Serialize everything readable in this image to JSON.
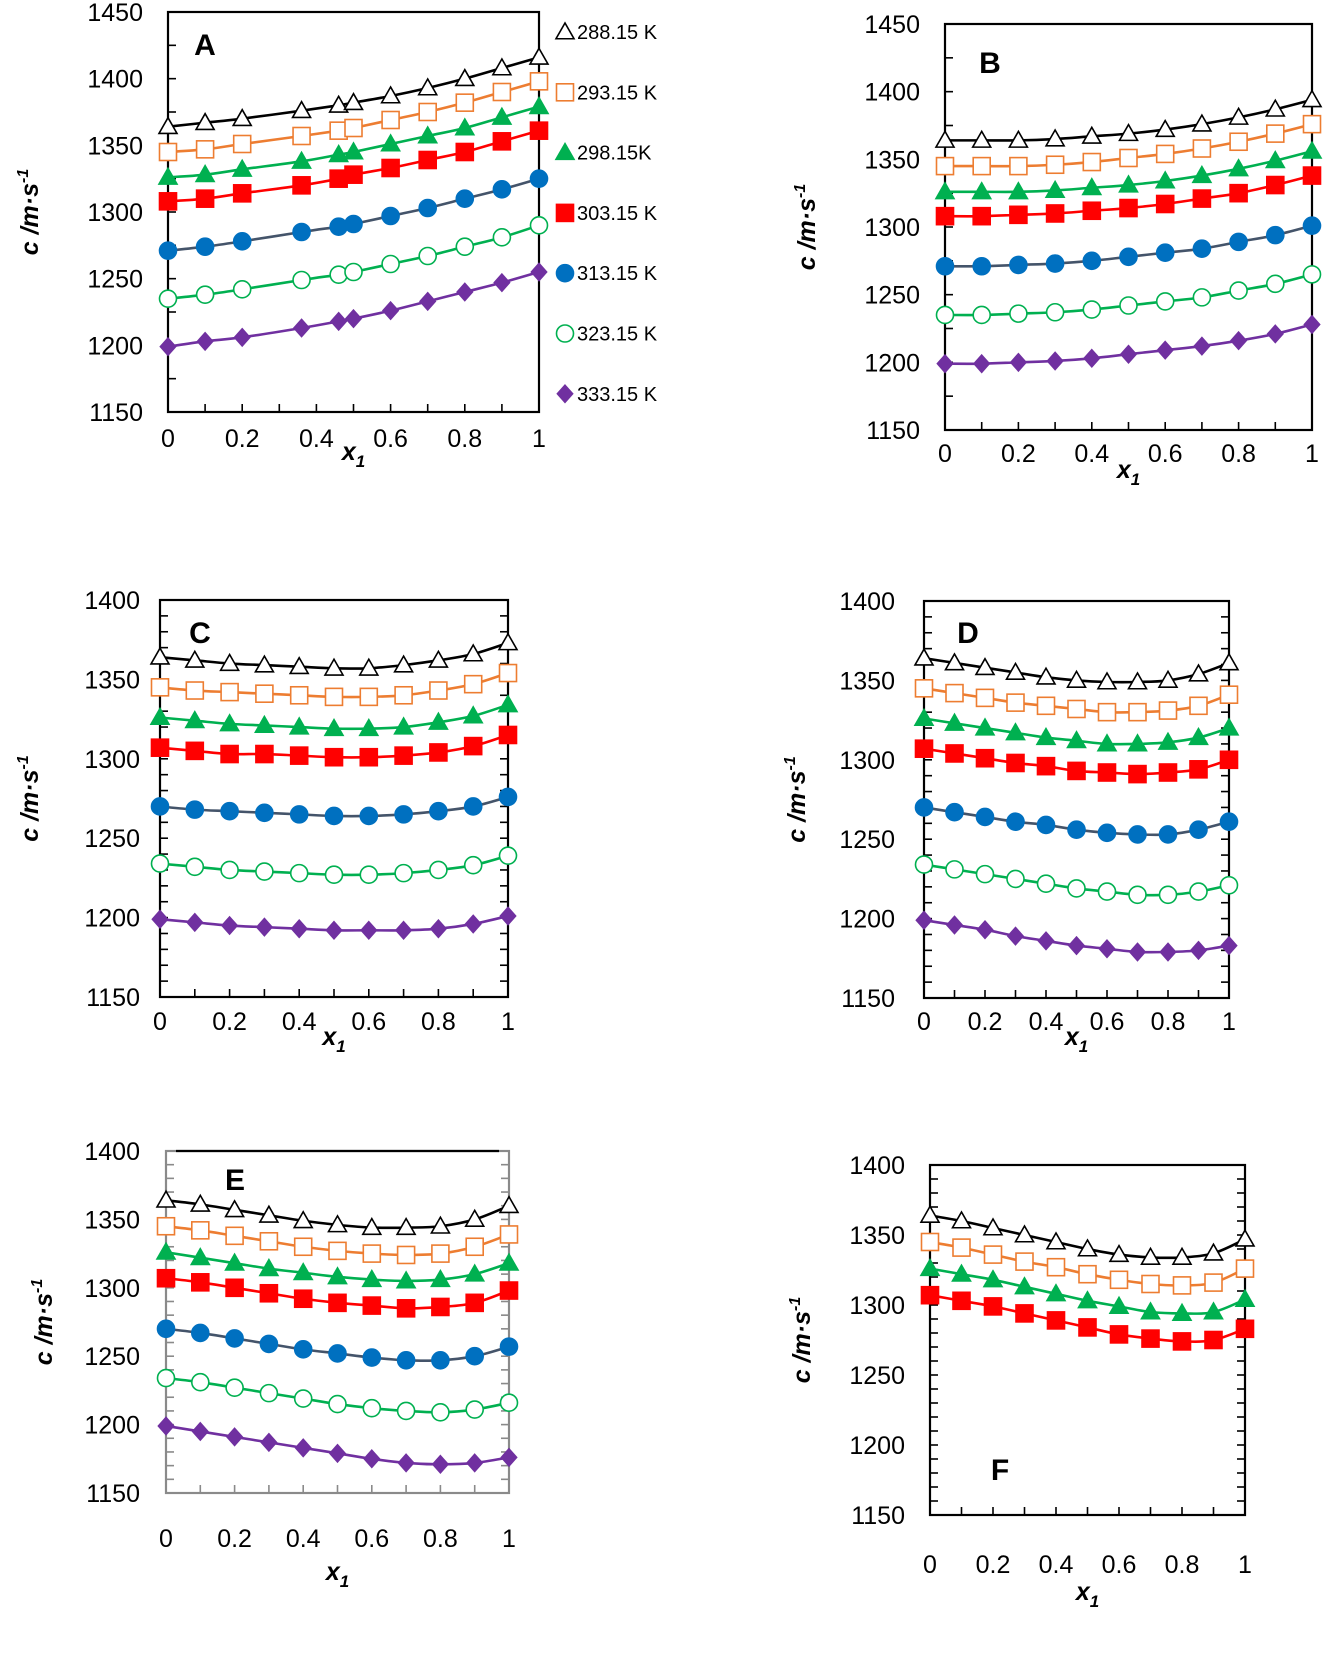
{
  "chart_data": {
    "type": "line",
    "legend": {
      "placement": "right-of-panel-A",
      "entries": [
        {
          "key": "T288",
          "label": "288.15 K",
          "marker": "triangle-open",
          "color": "#000000",
          "line": "#000000"
        },
        {
          "key": "T293",
          "label": "293.15 K",
          "marker": "square-open",
          "color": "#ED7D31",
          "line": "#ED7D31"
        },
        {
          "key": "T298",
          "label": "298.15K",
          "marker": "triangle-filled",
          "color": "#00B050",
          "line": "#00B050"
        },
        {
          "key": "T303",
          "label": "303.15 K",
          "marker": "square-filled",
          "color": "#FF0000",
          "line": "#FF0000"
        },
        {
          "key": "T313",
          "label": "313.15 K",
          "marker": "circle-filled",
          "color": "#0070C0",
          "line": "#44546A"
        },
        {
          "key": "T323",
          "label": "323.15 K",
          "marker": "circle-open",
          "color": "#00B050",
          "line": "#00B050"
        },
        {
          "key": "T333",
          "label": "333.15 K",
          "marker": "diamond-filled",
          "color": "#7030A0",
          "line": "#7030A0"
        }
      ]
    },
    "panels": [
      {
        "id": "A",
        "letter": "A",
        "xlabel": "x",
        "xlabel_sub": "1",
        "ylabel": "c /m·s",
        "ylabel_sup": "-1",
        "xlim": [
          0,
          1
        ],
        "ylim": [
          1150,
          1450
        ],
        "xticks": [
          "0",
          "0.2",
          "0.4",
          "0.6",
          "0.8",
          "1"
        ],
        "yticks": [
          "1150",
          "1200",
          "1250",
          "1300",
          "1350",
          "1400",
          "1450"
        ],
        "x": [
          0,
          0.1,
          0.2,
          0.36,
          0.46,
          0.5,
          0.6,
          0.7,
          0.8,
          0.9,
          1
        ],
        "series": [
          {
            "key": "T288",
            "values": [
              1364,
              1367,
              1370,
              1376,
              1380,
              1382,
              1387,
              1393,
              1400,
              1408,
              1416
            ]
          },
          {
            "key": "T293",
            "values": [
              1345,
              1347,
              1351,
              1357,
              1361,
              1363,
              1369,
              1375,
              1382,
              1390,
              1398
            ]
          },
          {
            "key": "T298",
            "values": [
              1326,
              1328,
              1332,
              1338,
              1343,
              1345,
              1351,
              1357,
              1363,
              1371,
              1379
            ]
          },
          {
            "key": "T303",
            "values": [
              1308,
              1310,
              1314,
              1320,
              1325,
              1328,
              1333,
              1339,
              1345,
              1353,
              1361
            ]
          },
          {
            "key": "T313",
            "values": [
              1271,
              1274,
              1278,
              1285,
              1289,
              1291,
              1297,
              1303,
              1310,
              1317,
              1325
            ]
          },
          {
            "key": "T323",
            "values": [
              1235,
              1238,
              1242,
              1249,
              1253,
              1255,
              1261,
              1267,
              1274,
              1281,
              1290
            ]
          },
          {
            "key": "T333",
            "values": [
              1199,
              1203,
              1206,
              1213,
              1218,
              1220,
              1226,
              1233,
              1240,
              1247,
              1255
            ]
          }
        ]
      },
      {
        "id": "B",
        "letter": "B",
        "xlabel": "x",
        "xlabel_sub": "1",
        "ylabel": "c /m·s",
        "ylabel_sup": "-1",
        "xlim": [
          0,
          1
        ],
        "ylim": [
          1150,
          1450
        ],
        "xticks": [
          "0",
          "0.2",
          "0.4",
          "0.6",
          "0.8",
          "1"
        ],
        "yticks": [
          "1150",
          "1200",
          "1250",
          "1300",
          "1350",
          "1400",
          "1450"
        ],
        "x": [
          0,
          0.1,
          0.2,
          0.3,
          0.4,
          0.5,
          0.6,
          0.7,
          0.8,
          0.9,
          1
        ],
        "series": [
          {
            "key": "T288",
            "values": [
              1364,
              1364,
              1364,
              1365,
              1367,
              1369,
              1372,
              1376,
              1381,
              1387,
              1394
            ]
          },
          {
            "key": "T293",
            "values": [
              1345,
              1345,
              1345,
              1346,
              1348,
              1351,
              1354,
              1358,
              1363,
              1369,
              1376
            ]
          },
          {
            "key": "T298",
            "values": [
              1326,
              1326,
              1326,
              1327,
              1329,
              1331,
              1334,
              1338,
              1343,
              1349,
              1356
            ]
          },
          {
            "key": "T303",
            "values": [
              1308,
              1308,
              1309,
              1310,
              1312,
              1314,
              1317,
              1321,
              1325,
              1331,
              1338
            ]
          },
          {
            "key": "T313",
            "values": [
              1271,
              1271,
              1272,
              1273,
              1275,
              1278,
              1281,
              1284,
              1289,
              1294,
              1301
            ]
          },
          {
            "key": "T323",
            "values": [
              1235,
              1235,
              1236,
              1237,
              1239,
              1242,
              1245,
              1248,
              1253,
              1258,
              1265
            ]
          },
          {
            "key": "T333",
            "values": [
              1199,
              1199,
              1200,
              1201,
              1203,
              1206,
              1209,
              1212,
              1216,
              1221,
              1228
            ]
          }
        ]
      },
      {
        "id": "C",
        "letter": "C",
        "xlabel": "x",
        "xlabel_sub": "1",
        "ylabel": "c /m·s",
        "ylabel_sup": "-1",
        "xlim": [
          0,
          1
        ],
        "ylim": [
          1150,
          1400
        ],
        "xticks": [
          "0",
          "0.2",
          "0.4",
          "0.6",
          "0.8",
          "1"
        ],
        "yticks": [
          "1150",
          "1200",
          "1250",
          "1300",
          "1350",
          "1400"
        ],
        "x": [
          0,
          0.1,
          0.2,
          0.3,
          0.4,
          0.5,
          0.6,
          0.7,
          0.8,
          0.9,
          1
        ],
        "series": [
          {
            "key": "T288",
            "values": [
              1364,
              1362,
              1360,
              1359,
              1358,
              1357,
              1357,
              1359,
              1362,
              1366,
              1373
            ]
          },
          {
            "key": "T293",
            "values": [
              1345,
              1343,
              1342,
              1341,
              1340,
              1339,
              1339,
              1340,
              1343,
              1347,
              1354
            ]
          },
          {
            "key": "T298",
            "values": [
              1326,
              1324,
              1322,
              1321,
              1320,
              1319,
              1319,
              1320,
              1323,
              1327,
              1334
            ]
          },
          {
            "key": "T303",
            "values": [
              1307,
              1305,
              1303,
              1303,
              1302,
              1301,
              1301,
              1302,
              1304,
              1308,
              1315
            ]
          },
          {
            "key": "T313",
            "values": [
              1270,
              1268,
              1267,
              1266,
              1265,
              1264,
              1264,
              1265,
              1267,
              1270,
              1276
            ]
          },
          {
            "key": "T323",
            "values": [
              1234,
              1232,
              1230,
              1229,
              1228,
              1227,
              1227,
              1228,
              1230,
              1233,
              1239
            ]
          },
          {
            "key": "T333",
            "values": [
              1199,
              1197,
              1195,
              1194,
              1193,
              1192,
              1192,
              1192,
              1193,
              1196,
              1201
            ]
          }
        ]
      },
      {
        "id": "D",
        "letter": "D",
        "xlabel": "x",
        "xlabel_sub": "1",
        "ylabel": "c /m·s",
        "ylabel_sup": "-1",
        "xlim": [
          0,
          1
        ],
        "ylim": [
          1150,
          1400
        ],
        "xticks": [
          "0",
          "0.2",
          "0.4",
          "0.6",
          "0.8",
          "1"
        ],
        "yticks": [
          "1150",
          "1200",
          "1250",
          "1300",
          "1350",
          "1400"
        ],
        "x": [
          0,
          0.1,
          0.2,
          0.3,
          0.4,
          0.5,
          0.6,
          0.7,
          0.8,
          0.9,
          1
        ],
        "series": [
          {
            "key": "T288",
            "values": [
              1364,
              1361,
              1358,
              1355,
              1352,
              1350,
              1349,
              1349,
              1350,
              1354,
              1361
            ]
          },
          {
            "key": "T293",
            "values": [
              1345,
              1342,
              1339,
              1336,
              1334,
              1332,
              1330,
              1330,
              1331,
              1334,
              1341
            ]
          },
          {
            "key": "T298",
            "values": [
              1326,
              1323,
              1320,
              1317,
              1314,
              1312,
              1310,
              1310,
              1311,
              1314,
              1320
            ]
          },
          {
            "key": "T303",
            "values": [
              1307,
              1304,
              1301,
              1298,
              1296,
              1293,
              1292,
              1291,
              1292,
              1294,
              1300
            ]
          },
          {
            "key": "T313",
            "values": [
              1270,
              1267,
              1264,
              1261,
              1259,
              1256,
              1254,
              1253,
              1253,
              1256,
              1261
            ]
          },
          {
            "key": "T323",
            "values": [
              1234,
              1231,
              1228,
              1225,
              1222,
              1219,
              1217,
              1215,
              1215,
              1217,
              1221
            ]
          },
          {
            "key": "T333",
            "values": [
              1199,
              1196,
              1193,
              1189,
              1186,
              1183,
              1181,
              1179,
              1179,
              1180,
              1183
            ]
          }
        ]
      },
      {
        "id": "E",
        "letter": "E",
        "xlabel": "x",
        "xlabel_sub": "1",
        "ylabel": "c /m·s",
        "ylabel_sup": "-1",
        "xlim": [
          0,
          1
        ],
        "ylim": [
          1150,
          1400
        ],
        "xticks": [
          "0",
          "0.2",
          "0.4",
          "0.6",
          "0.8",
          "1"
        ],
        "yticks": [
          "1150",
          "1200",
          "1250",
          "1300",
          "1350",
          "1400"
        ],
        "x": [
          0,
          0.1,
          0.2,
          0.3,
          0.4,
          0.5,
          0.6,
          0.7,
          0.8,
          0.9,
          1
        ],
        "series": [
          {
            "key": "T288",
            "values": [
              1364,
              1361,
              1357,
              1353,
              1349,
              1346,
              1344,
              1344,
              1345,
              1350,
              1360
            ]
          },
          {
            "key": "T293",
            "values": [
              1345,
              1342,
              1338,
              1334,
              1330,
              1327,
              1325,
              1324,
              1325,
              1330,
              1339
            ]
          },
          {
            "key": "T298",
            "values": [
              1326,
              1322,
              1318,
              1314,
              1311,
              1308,
              1306,
              1305,
              1306,
              1310,
              1318
            ]
          },
          {
            "key": "T303",
            "values": [
              1307,
              1304,
              1300,
              1296,
              1292,
              1289,
              1287,
              1285,
              1286,
              1289,
              1298
            ]
          },
          {
            "key": "T313",
            "values": [
              1270,
              1267,
              1263,
              1259,
              1255,
              1252,
              1249,
              1247,
              1247,
              1250,
              1257
            ]
          },
          {
            "key": "T323",
            "values": [
              1234,
              1231,
              1227,
              1223,
              1219,
              1215,
              1212,
              1210,
              1209,
              1211,
              1216
            ]
          },
          {
            "key": "T333",
            "values": [
              1199,
              1195,
              1191,
              1187,
              1183,
              1179,
              1175,
              1172,
              1171,
              1172,
              1176
            ]
          }
        ]
      },
      {
        "id": "F",
        "letter": "F",
        "xlabel": "x",
        "xlabel_sub": "1",
        "ylabel": "c /m·s",
        "ylabel_sup": "-1",
        "xlim": [
          0,
          1
        ],
        "ylim": [
          1150,
          1400
        ],
        "xticks": [
          "0",
          "0.2",
          "0.4",
          "0.6",
          "0.8",
          "1"
        ],
        "yticks": [
          "1150",
          "1200",
          "1250",
          "1300",
          "1350",
          "1400"
        ],
        "x": [
          0,
          0.1,
          0.2,
          0.3,
          0.4,
          0.5,
          0.6,
          0.7,
          0.8,
          0.9,
          1
        ],
        "series": [
          {
            "key": "T288",
            "values": [
              1364,
              1360,
              1355,
              1350,
              1345,
              1340,
              1336,
              1334,
              1334,
              1337,
              1347
            ]
          },
          {
            "key": "T293",
            "values": [
              1345,
              1341,
              1336,
              1331,
              1327,
              1322,
              1318,
              1315,
              1314,
              1316,
              1326
            ]
          },
          {
            "key": "T298",
            "values": [
              1326,
              1322,
              1318,
              1313,
              1308,
              1303,
              1299,
              1295,
              1294,
              1295,
              1304
            ]
          },
          {
            "key": "T303",
            "values": [
              1307,
              1303,
              1299,
              1294,
              1289,
              1284,
              1279,
              1276,
              1274,
              1275,
              1283
            ]
          }
        ]
      }
    ]
  }
}
